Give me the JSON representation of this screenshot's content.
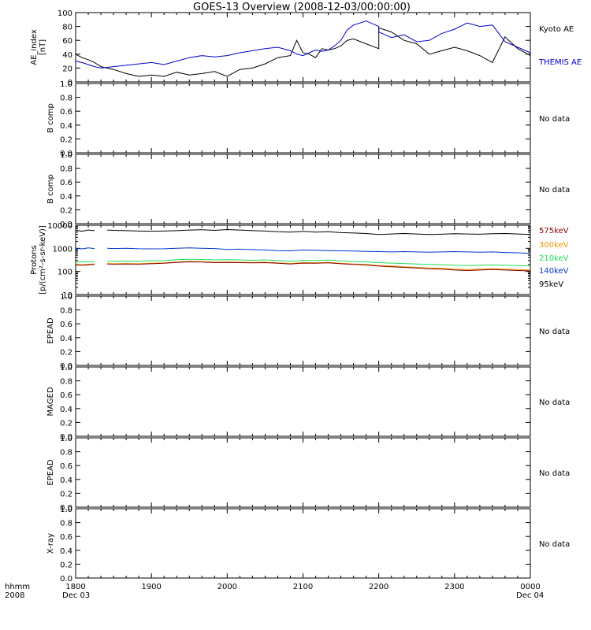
{
  "title": "GOES-13 Overview (2008-12-03/00:00:00)",
  "x_axis": {
    "left_label_top": "hhmm",
    "left_label_bottom": "2008",
    "ticks": [
      "1800",
      "1900",
      "2000",
      "2100",
      "2200",
      "2300",
      "0000"
    ],
    "start_date": "Dec 03",
    "end_date": "Dec 04"
  },
  "panels": [
    {
      "id": "ae",
      "ylabel": [
        "AE_index",
        "[nT]"
      ]
    },
    {
      "id": "bcomp1",
      "ylabel": [
        "B comp"
      ],
      "right_labels": [
        {
          "text": "No data",
          "color": "#000000"
        }
      ]
    },
    {
      "id": "bcomp2",
      "ylabel": [
        "B comp"
      ],
      "right_labels": [
        {
          "text": "No data",
          "color": "#000000"
        }
      ]
    },
    {
      "id": "protons",
      "ylabel": [
        "Protons",
        "[p/(cm²-s-sr-keV)]"
      ]
    },
    {
      "id": "epead1",
      "ylabel": [
        "EPEAD"
      ],
      "right_labels": [
        {
          "text": "No data",
          "color": "#000000"
        }
      ]
    },
    {
      "id": "maged",
      "ylabel": [
        "MAGED"
      ],
      "right_labels": [
        {
          "text": "No data",
          "color": "#000000"
        }
      ]
    },
    {
      "id": "epead2",
      "ylabel": [
        "EPEAD"
      ],
      "right_labels": [
        {
          "text": "No data",
          "color": "#000000"
        }
      ]
    },
    {
      "id": "xray",
      "ylabel": [
        "X-ray"
      ],
      "right_labels": [
        {
          "text": "No data",
          "color": "#000000"
        }
      ]
    }
  ],
  "chart_data": [
    {
      "type": "line",
      "ylabel": "AE_index [nT]",
      "ylim": [
        0,
        100
      ],
      "yticks": [
        "0",
        "20",
        "40",
        "60",
        "80",
        "100"
      ],
      "x_unit": "hhmm",
      "xlim": [
        "1800",
        "0000"
      ],
      "series": [
        {
          "name": "Kyoto AE",
          "color": "#000000",
          "x": [
            "1800",
            "1805",
            "1810",
            "1815",
            "1820",
            "1830",
            "1840",
            "1850",
            "1900",
            "1910",
            "1920",
            "1930",
            "1940",
            "1950",
            "2000",
            "2010",
            "2020",
            "2030",
            "2040",
            "2050",
            "2055",
            "2100",
            "2105",
            "2110",
            "2115",
            "2120",
            "2125",
            "2130",
            "2135",
            "2140",
            "2150",
            "2160",
            "2200",
            "2210",
            "2220",
            "2230",
            "2240",
            "2250",
            "2300",
            "2310",
            "2320",
            "2330",
            "2340",
            "2350",
            "0000"
          ],
          "y": [
            40,
            35,
            32,
            28,
            22,
            18,
            12,
            8,
            10,
            8,
            14,
            10,
            12,
            15,
            8,
            18,
            20,
            26,
            35,
            38,
            60,
            42,
            40,
            35,
            48,
            46,
            48,
            52,
            60,
            62,
            55,
            48,
            78,
            72,
            60,
            55,
            40,
            45,
            50,
            45,
            38,
            28,
            65,
            48,
            38
          ]
        },
        {
          "name": "THEMIS AE",
          "color": "#0000cc",
          "x": [
            "1800",
            "1805",
            "1810",
            "1815",
            "1820",
            "1830",
            "1840",
            "1850",
            "1900",
            "1910",
            "1920",
            "1930",
            "1940",
            "1950",
            "2000",
            "2010",
            "2020",
            "2030",
            "2040",
            "2050",
            "2055",
            "2100",
            "2105",
            "2110",
            "2115",
            "2120",
            "2125",
            "2130",
            "2135",
            "2140",
            "2150",
            "2160",
            "2200",
            "2210",
            "2220",
            "2230",
            "2240",
            "2250",
            "2300",
            "2310",
            "2320",
            "2330",
            "2340",
            "2350",
            "0000"
          ],
          "y": [
            30,
            28,
            25,
            22,
            20,
            22,
            24,
            26,
            28,
            25,
            30,
            35,
            38,
            36,
            38,
            42,
            45,
            48,
            50,
            45,
            40,
            38,
            42,
            46,
            44,
            46,
            52,
            60,
            75,
            82,
            88,
            80,
            72,
            64,
            68,
            58,
            60,
            70,
            76,
            85,
            80,
            82,
            58,
            50,
            42
          ]
        }
      ],
      "legend": [
        "Kyoto AE",
        "THEMIS AE"
      ]
    },
    {
      "type": "line",
      "ylabel": "Protons [p/(cm²-s-sr-keV)]",
      "yscale": "log",
      "ylim": [
        10,
        10000
      ],
      "yticks": [
        "10",
        "100",
        "1000",
        "10000"
      ],
      "x_unit": "hhmm",
      "xlim": [
        "1800",
        "0000"
      ],
      "gap": [
        "1815",
        "1825"
      ],
      "x": [
        "1800",
        "1805",
        "1810",
        "1815",
        "1825",
        "1830",
        "1840",
        "1850",
        "1900",
        "1910",
        "1920",
        "1930",
        "1940",
        "1950",
        "2000",
        "2010",
        "2020",
        "2030",
        "2040",
        "2050",
        "2100",
        "2110",
        "2120",
        "2130",
        "2140",
        "2150",
        "2200",
        "2210",
        "2220",
        "2230",
        "2240",
        "2250",
        "2300",
        "2310",
        "2320",
        "2330",
        "2340",
        "2350",
        "0000"
      ],
      "series": [
        {
          "name": "575keV",
          "color": "#8b0000",
          "values": [
            190,
            185,
            195,
            200,
            210,
            205,
            210,
            205,
            215,
            225,
            245,
            260,
            255,
            240,
            245,
            240,
            235,
            240,
            225,
            210,
            230,
            225,
            235,
            215,
            200,
            190,
            170,
            160,
            150,
            140,
            130,
            125,
            115,
            110,
            115,
            120,
            115,
            110,
            105
          ]
        },
        {
          "name": "300keV",
          "color": "#e69900",
          "values": [
            200,
            195,
            205,
            210,
            220,
            215,
            220,
            215,
            225,
            235,
            255,
            270,
            265,
            250,
            255,
            250,
            245,
            250,
            235,
            220,
            240,
            235,
            245,
            225,
            210,
            200,
            180,
            170,
            160,
            150,
            140,
            135,
            125,
            120,
            125,
            130,
            125,
            120,
            115
          ]
        },
        {
          "name": "210keV",
          "color": "#22dd55",
          "values": [
            260,
            255,
            265,
            270,
            280,
            275,
            280,
            275,
            285,
            295,
            320,
            340,
            330,
            315,
            320,
            315,
            305,
            315,
            295,
            280,
            300,
            295,
            310,
            285,
            270,
            260,
            240,
            230,
            220,
            210,
            200,
            195,
            185,
            180,
            185,
            190,
            185,
            180,
            175
          ]
        },
        {
          "name": "140keV",
          "color": "#0033cc",
          "values": [
            1000,
            950,
            1050,
            980,
            1000,
            980,
            1000,
            960,
            950,
            960,
            1000,
            1050,
            1000,
            980,
            900,
            920,
            880,
            850,
            800,
            780,
            850,
            820,
            800,
            780,
            760,
            740,
            720,
            700,
            720,
            700,
            680,
            700,
            720,
            700,
            680,
            700,
            660,
            640,
            600
          ]
        },
        {
          "name": "95keV",
          "color": "#000000",
          "values": [
            6000,
            5500,
            6200,
            5800,
            6200,
            6000,
            5800,
            5600,
            5500,
            5600,
            5800,
            6200,
            6400,
            6000,
            6500,
            6200,
            5800,
            5600,
            5200,
            5000,
            5400,
            5000,
            5200,
            4800,
            4600,
            4400,
            4000,
            4200,
            4400,
            4200,
            4000,
            4100,
            4300,
            4200,
            4100,
            4300,
            4400,
            4200,
            4000
          ]
        }
      ],
      "legend": [
        "575keV",
        "300keV",
        "210keV",
        "140keV",
        "95keV"
      ]
    }
  ],
  "empty_panel_yticks": [
    "0.0",
    "0.2",
    "0.4",
    "0.6",
    "0.8",
    "1.0"
  ]
}
